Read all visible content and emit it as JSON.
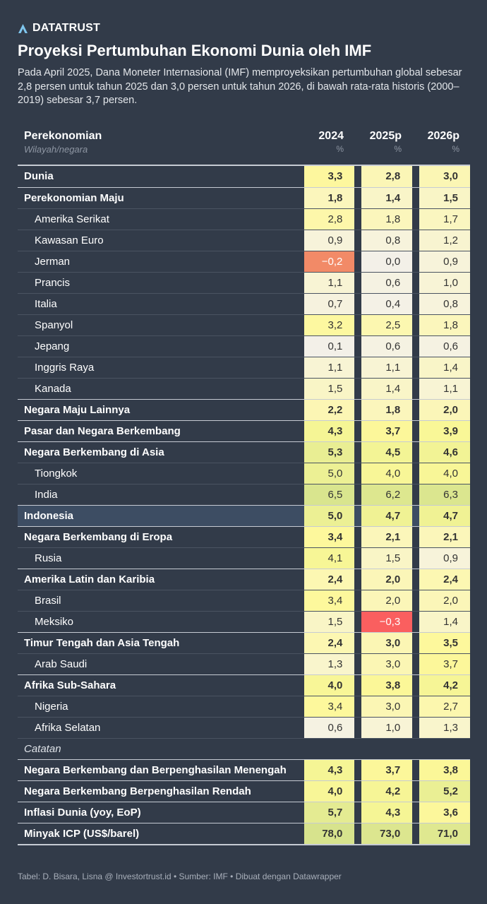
{
  "brand": "DATATRUST",
  "title": "Proyeksi Pertumbuhan Ekonomi Dunia oleh IMF",
  "subtitle": "Pada April 2025, Dana Moneter Internasional (IMF) memproyeksikan pertumbuhan global sebesar 2,8 persen untuk tahun 2025 dan 3,0 persen untuk tahun 2026, di bawah rata-rata historis (2000–2019) sebesar 3,7 persen.",
  "footer": "Tabel: D. Bisara, Lisna @ Investortrust.id • Sumber: IMF • Dibuat dengan Datawrapper",
  "colors": {
    "background": "#323b49",
    "highlight_row": "#3d4d63",
    "negative_strong": "#fa5f5f",
    "negative": "#f28a67"
  },
  "chart_data": {
    "type": "table",
    "header": {
      "label": "Perekonomian",
      "sublabel": "Wilayah/negara",
      "columns": [
        {
          "year": "2024",
          "unit": "%"
        },
        {
          "year": "2025p",
          "unit": "%"
        },
        {
          "year": "2026p",
          "unit": "%"
        }
      ]
    },
    "rows": [
      {
        "name": "Dunia",
        "kind": "bold",
        "values": [
          "3,3",
          "2,8",
          "3,0"
        ],
        "colors": [
          "#fdf79e",
          "#fbf6b6",
          "#fbf6b4"
        ]
      },
      {
        "name": "Perekonomian Maju",
        "kind": "bold",
        "values": [
          "1,8",
          "1,4",
          "1,5"
        ],
        "colors": [
          "#fbf6bc",
          "#f9f5c8",
          "#f9f5c6"
        ]
      },
      {
        "name": "Amerika Serikat",
        "kind": "sub",
        "values": [
          "2,8",
          "1,8",
          "1,7"
        ],
        "colors": [
          "#fdf7aa",
          "#fbf6bc",
          "#faf6c0"
        ]
      },
      {
        "name": "Kawasan Euro",
        "kind": "sub",
        "values": [
          "0,9",
          "0,8",
          "1,2"
        ],
        "colors": [
          "#f7f3da",
          "#f7f3dc",
          "#f8f4d0"
        ]
      },
      {
        "name": "Jerman",
        "kind": "sub",
        "values": [
          "−0,2",
          "0,0",
          "0,9"
        ],
        "colors": [
          "#f28a67",
          "#f3f0e8",
          "#f7f3da"
        ]
      },
      {
        "name": "Prancis",
        "kind": "sub",
        "values": [
          "1,1",
          "0,6",
          "1,0"
        ],
        "colors": [
          "#f8f4d4",
          "#f5f2e2",
          "#f8f4d6"
        ]
      },
      {
        "name": "Italia",
        "kind": "sub",
        "values": [
          "0,7",
          "0,4",
          "0,8"
        ],
        "colors": [
          "#f6f2de",
          "#f4f1e6",
          "#f7f3dc"
        ]
      },
      {
        "name": "Spanyol",
        "kind": "sub",
        "values": [
          "3,2",
          "2,5",
          "1,8"
        ],
        "colors": [
          "#fdf8a0",
          "#fcf7b0",
          "#fbf6bc"
        ]
      },
      {
        "name": "Jepang",
        "kind": "sub",
        "values": [
          "0,1",
          "0,6",
          "0,6"
        ],
        "colors": [
          "#f3f0e8",
          "#f5f2e2",
          "#f5f2e2"
        ]
      },
      {
        "name": "Inggris Raya",
        "kind": "sub",
        "values": [
          "1,1",
          "1,1",
          "1,4"
        ],
        "colors": [
          "#f8f4d4",
          "#f8f4d4",
          "#f9f5c8"
        ]
      },
      {
        "name": "Kanada",
        "kind": "sub",
        "values": [
          "1,5",
          "1,4",
          "1,1"
        ],
        "colors": [
          "#f9f5c6",
          "#f9f5c8",
          "#f8f4d4"
        ]
      },
      {
        "name": "Negara Maju Lainnya",
        "kind": "bold",
        "values": [
          "2,2",
          "1,8",
          "2,0"
        ],
        "colors": [
          "#fcf6b4",
          "#fbf6bc",
          "#fbf6b8"
        ]
      },
      {
        "name": "Pasar dan Negara Berkembang",
        "kind": "bold",
        "values": [
          "4,3",
          "3,7",
          "3,9"
        ],
        "colors": [
          "#f5f595",
          "#fcf79a",
          "#f9f797"
        ]
      },
      {
        "name": "Negara Berkembang di Asia",
        "kind": "bold",
        "values": [
          "5,3",
          "4,5",
          "4,6"
        ],
        "colors": [
          "#e9ee93",
          "#f3f495",
          "#f2f395"
        ]
      },
      {
        "name": "Tiongkok",
        "kind": "sub",
        "values": [
          "5,0",
          "4,0",
          "4,0"
        ],
        "colors": [
          "#ecf094",
          "#f8f697",
          "#f8f697"
        ]
      },
      {
        "name": "India",
        "kind": "sub",
        "values": [
          "6,5",
          "6,2",
          "6,3"
        ],
        "colors": [
          "#d9e58e",
          "#dde78f",
          "#dbe68f"
        ]
      },
      {
        "name": "Indonesia",
        "kind": "bold",
        "highlight": true,
        "values": [
          "5,0",
          "4,7",
          "4,7"
        ],
        "colors": [
          "#ecf094",
          "#f0f294",
          "#f0f294"
        ]
      },
      {
        "name": "Negara Berkembang di Eropa",
        "kind": "bold",
        "values": [
          "3,4",
          "2,1",
          "2,1"
        ],
        "colors": [
          "#fdf89c",
          "#fbf6ba",
          "#fbf6ba"
        ]
      },
      {
        "name": "Rusia",
        "kind": "sub",
        "values": [
          "4,1",
          "1,5",
          "0,9"
        ],
        "colors": [
          "#f7f696",
          "#f9f5c6",
          "#f7f3da"
        ]
      },
      {
        "name": "Amerika Latin dan Karibia",
        "kind": "bold",
        "values": [
          "2,4",
          "2,0",
          "2,4"
        ],
        "colors": [
          "#fcf7b2",
          "#fbf6b8",
          "#fcf7b2"
        ]
      },
      {
        "name": "Brasil",
        "kind": "sub",
        "values": [
          "3,4",
          "2,0",
          "2,0"
        ],
        "colors": [
          "#fdf89c",
          "#fbf6b8",
          "#fbf6b8"
        ]
      },
      {
        "name": "Meksiko",
        "kind": "sub",
        "values": [
          "1,5",
          "−0,3",
          "1,4"
        ],
        "colors": [
          "#f9f5c6",
          "#fa5f5f",
          "#f9f5c8"
        ]
      },
      {
        "name": "Timur Tengah dan Asia Tengah",
        "kind": "bold",
        "values": [
          "2,4",
          "3,0",
          "3,5"
        ],
        "colors": [
          "#fcf7b2",
          "#fbf6b4",
          "#fdf89c"
        ]
      },
      {
        "name": "Arab Saudi",
        "kind": "sub",
        "values": [
          "1,3",
          "3,0",
          "3,7"
        ],
        "colors": [
          "#f9f5cc",
          "#fbf6b4",
          "#fcf79a"
        ]
      },
      {
        "name": "Afrika Sub-Sahara",
        "kind": "bold",
        "values": [
          "4,0",
          "3,8",
          "4,2"
        ],
        "colors": [
          "#f8f697",
          "#fbf798",
          "#f6f596"
        ]
      },
      {
        "name": "Nigeria",
        "kind": "sub",
        "values": [
          "3,4",
          "3,0",
          "2,7"
        ],
        "colors": [
          "#fdf89c",
          "#fbf6b4",
          "#fcf7ae"
        ]
      },
      {
        "name": "Afrika Selatan",
        "kind": "sub",
        "values": [
          "0,6",
          "1,0",
          "1,3"
        ],
        "colors": [
          "#f5f2e2",
          "#f8f4d6",
          "#f9f5cc"
        ]
      },
      {
        "name": "Catatan",
        "kind": "note",
        "values": [
          "",
          "",
          ""
        ],
        "colors": [
          "",
          "",
          ""
        ]
      },
      {
        "name": "Negara Berkembang dan Berpenghasilan Menengah",
        "kind": "bold",
        "values": [
          "4,3",
          "3,7",
          "3,8"
        ],
        "colors": [
          "#f5f595",
          "#fcf79a",
          "#fbf798"
        ]
      },
      {
        "name": "Negara Berkembang Berpenghasilan Rendah",
        "kind": "bold",
        "values": [
          "4,0",
          "4,2",
          "5,2"
        ],
        "colors": [
          "#f8f697",
          "#f6f596",
          "#eaef94"
        ]
      },
      {
        "name": "Inflasi Dunia (yoy, EoP)",
        "kind": "bold",
        "values": [
          "5,7",
          "4,3",
          "3,6"
        ],
        "colors": [
          "#e4eb92",
          "#f5f595",
          "#fcf79b"
        ]
      },
      {
        "name": "Minyak ICP (US$/barel)",
        "kind": "bold",
        "values": [
          "78,0",
          "73,0",
          "71,0"
        ],
        "colors": [
          "#d7e38d",
          "#dce68f",
          "#dfe890"
        ]
      }
    ]
  }
}
